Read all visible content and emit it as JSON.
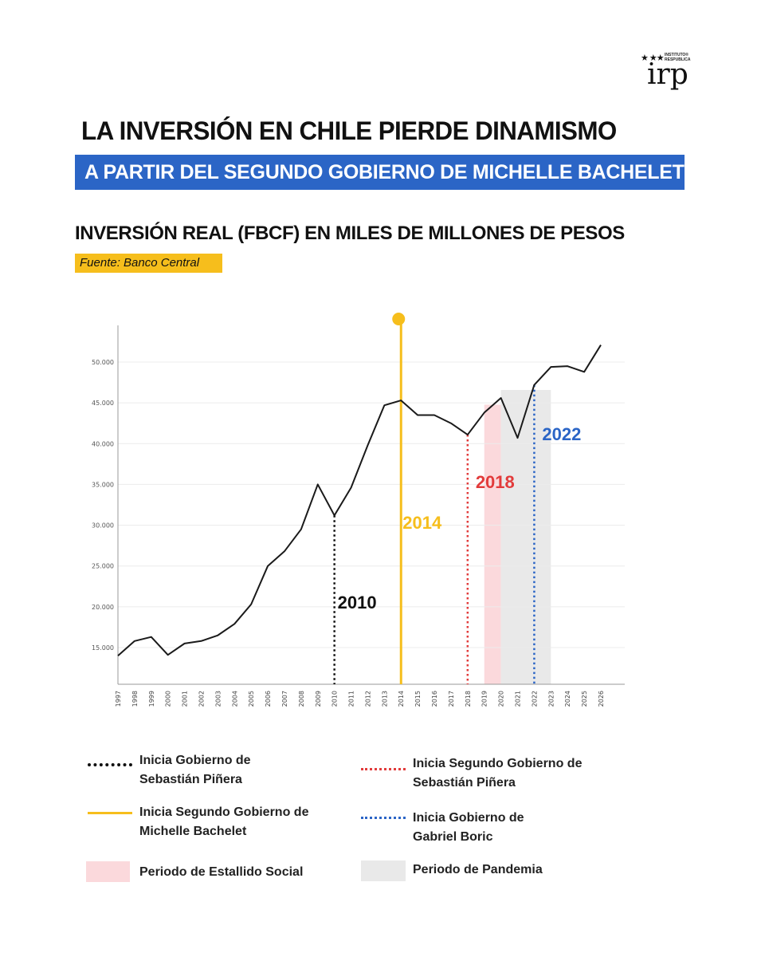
{
  "header": {
    "title_line1": "LA INVERSIÓN EN CHILE PIERDE DINAMISMO",
    "title_line2": "A PARTIR DEL SEGUNDO GOBIERNO DE MICHELLE BACHELET",
    "chart_title": "INVERSIÓN REAL (FBCF) EN MILES DE MILLONES DE PESOS",
    "source": "Fuente: Banco Central"
  },
  "logo": {
    "small_text_1": "INSTITUTO®",
    "small_text_2": "RESPUBLICA",
    "main_text": "irp"
  },
  "colors": {
    "blue_banner": "#2b65c6",
    "yellow": "#f6be1c",
    "red": "#e23b3b",
    "blue": "#2b65c6",
    "black": "#111111",
    "estallido_band": "#fbd9dc",
    "pandemia_band": "#e9e9e9"
  },
  "chart_data": {
    "type": "line",
    "title": "INVERSIÓN REAL (FBCF) EN MILES DE MILLONES DE PESOS",
    "x": [
      "1997",
      "1998",
      "1999",
      "2000",
      "2001",
      "2002",
      "2003",
      "2004",
      "2005",
      "2006",
      "2007",
      "2008",
      "2009",
      "2010",
      "2011",
      "2012",
      "2013",
      "2014",
      "2015",
      "2016",
      "2017",
      "2018",
      "2019",
      "2020",
      "2021",
      "2022",
      "2023",
      "2024",
      "2025",
      "2026"
    ],
    "series": [
      {
        "name": "",
        "values": [
          14000,
          15800,
          16300,
          14100,
          15500,
          15800,
          16500,
          17900,
          20300,
          25000,
          26800,
          29500,
          35000,
          31200,
          34600,
          39800,
          44700,
          45300,
          43500,
          43500,
          42500,
          41100,
          43800,
          45600,
          40700,
          47200,
          49400,
          49500,
          48800,
          52100
        ]
      }
    ],
    "y_ticks": [
      "15.000",
      "20.000",
      "25.000",
      "30.000",
      "35.000",
      "40.000",
      "45.000",
      "50.000"
    ],
    "y_tick_values": [
      15000,
      20000,
      25000,
      30000,
      35000,
      40000,
      45000,
      50000
    ],
    "ylim": [
      10500,
      54500
    ],
    "grid": true,
    "annotations": [
      {
        "year": "2010",
        "label": "2010",
        "style": "dotted",
        "color": "#111111"
      },
      {
        "year": "2014",
        "label": "2014",
        "style": "solid",
        "color": "#f6be1c"
      },
      {
        "year": "2018",
        "label": "2018",
        "style": "dotted",
        "color": "#e23b3b"
      },
      {
        "year": "2022",
        "label": "2022",
        "style": "dotted",
        "color": "#2b65c6"
      }
    ],
    "bands": [
      {
        "from": "2019",
        "to": "2020",
        "color": "#fbd9dc",
        "name": "Periodo de Estallido Social"
      },
      {
        "from": "2020",
        "to": "2023",
        "color": "#e9e9e9",
        "name": "Periodo de Pandemia"
      }
    ]
  },
  "legend": {
    "items": [
      {
        "label1": "Inicia Gobierno de",
        "label2": "Sebastián Piñera"
      },
      {
        "label1": "Inicia Segundo Gobierno de",
        "label2": "Michelle Bachelet"
      },
      {
        "label1": "Periodo de Estallido Social",
        "label2": ""
      },
      {
        "label1": "Inicia Segundo Gobierno de",
        "label2": "Sebastián Piñera"
      },
      {
        "label1": "Inicia Gobierno de",
        "label2": "Gabriel Boric"
      },
      {
        "label1": "Periodo de Pandemia",
        "label2": ""
      }
    ]
  }
}
